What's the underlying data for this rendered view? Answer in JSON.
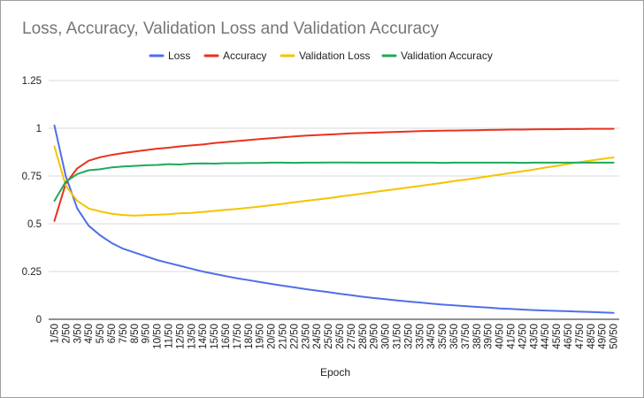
{
  "chart_data": {
    "type": "line",
    "title": "Loss, Accuracy, Validation Loss and Validation Accuracy",
    "xlabel": "Epoch",
    "ylabel": "",
    "ylim": [
      0,
      1.25
    ],
    "yticks": [
      "0",
      "0.25",
      "0.5",
      "0.75",
      "1",
      "1.25"
    ],
    "ytick_values": [
      0,
      0.25,
      0.5,
      0.75,
      1,
      1.25
    ],
    "grid": true,
    "legend_position": "top",
    "categories": [
      "1/50",
      "2/50",
      "3/50",
      "4/50",
      "5/50",
      "6/50",
      "7/50",
      "8/50",
      "9/50",
      "10/50",
      "11/50",
      "12/50",
      "13/50",
      "14/50",
      "15/50",
      "16/50",
      "17/50",
      "18/50",
      "19/50",
      "20/50",
      "21/50",
      "22/50",
      "23/50",
      "24/50",
      "25/50",
      "26/50",
      "27/50",
      "28/50",
      "29/50",
      "30/50",
      "31/50",
      "32/50",
      "33/50",
      "34/50",
      "35/50",
      "36/50",
      "37/50",
      "38/50",
      "39/50",
      "40/50",
      "41/50",
      "42/50",
      "43/50",
      "44/50",
      "45/50",
      "46/50",
      "47/50",
      "48/50",
      "49/50",
      "50/50"
    ],
    "series": [
      {
        "name": "Loss",
        "color": "#4f6fe8",
        "values": [
          1.015,
          0.75,
          0.58,
          0.49,
          0.44,
          0.4,
          0.37,
          0.35,
          0.33,
          0.31,
          0.295,
          0.28,
          0.265,
          0.25,
          0.238,
          0.226,
          0.215,
          0.205,
          0.195,
          0.185,
          0.176,
          0.167,
          0.158,
          0.15,
          0.142,
          0.134,
          0.126,
          0.118,
          0.111,
          0.105,
          0.099,
          0.093,
          0.088,
          0.082,
          0.077,
          0.073,
          0.069,
          0.065,
          0.061,
          0.057,
          0.054,
          0.051,
          0.048,
          0.046,
          0.044,
          0.042,
          0.04,
          0.038,
          0.036,
          0.034
        ]
      },
      {
        "name": "Accuracy",
        "color": "#e8321e",
        "values": [
          0.515,
          0.71,
          0.79,
          0.83,
          0.848,
          0.86,
          0.87,
          0.878,
          0.885,
          0.893,
          0.898,
          0.905,
          0.91,
          0.915,
          0.922,
          0.928,
          0.933,
          0.938,
          0.943,
          0.948,
          0.953,
          0.957,
          0.961,
          0.964,
          0.967,
          0.97,
          0.973,
          0.975,
          0.977,
          0.979,
          0.981,
          0.983,
          0.985,
          0.986,
          0.987,
          0.988,
          0.989,
          0.99,
          0.991,
          0.992,
          0.993,
          0.993,
          0.994,
          0.995,
          0.995,
          0.996,
          0.996,
          0.997,
          0.997,
          0.997
        ]
      },
      {
        "name": "Validation Loss",
        "color": "#f5c400",
        "values": [
          0.905,
          0.7,
          0.62,
          0.58,
          0.565,
          0.553,
          0.546,
          0.543,
          0.545,
          0.547,
          0.55,
          0.555,
          0.557,
          0.562,
          0.567,
          0.573,
          0.578,
          0.584,
          0.59,
          0.597,
          0.604,
          0.612,
          0.62,
          0.627,
          0.634,
          0.642,
          0.65,
          0.658,
          0.666,
          0.674,
          0.682,
          0.69,
          0.698,
          0.706,
          0.714,
          0.723,
          0.731,
          0.739,
          0.748,
          0.757,
          0.766,
          0.775,
          0.784,
          0.794,
          0.803,
          0.813,
          0.822,
          0.831,
          0.839,
          0.847
        ]
      },
      {
        "name": "Validation Accuracy",
        "color": "#1eaa5a",
        "values": [
          0.62,
          0.72,
          0.76,
          0.78,
          0.785,
          0.795,
          0.8,
          0.803,
          0.806,
          0.808,
          0.812,
          0.81,
          0.815,
          0.816,
          0.815,
          0.817,
          0.817,
          0.818,
          0.818,
          0.82,
          0.82,
          0.819,
          0.82,
          0.82,
          0.821,
          0.821,
          0.821,
          0.82,
          0.82,
          0.82,
          0.82,
          0.821,
          0.82,
          0.82,
          0.819,
          0.82,
          0.82,
          0.82,
          0.82,
          0.82,
          0.82,
          0.819,
          0.82,
          0.82,
          0.82,
          0.82,
          0.82,
          0.82,
          0.82,
          0.82
        ]
      }
    ]
  }
}
